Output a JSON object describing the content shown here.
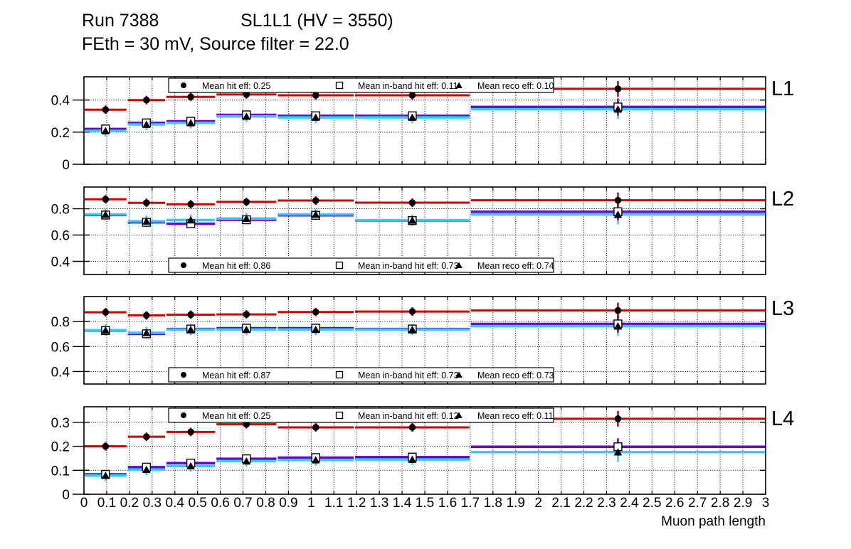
{
  "title": {
    "run": "Run 7388",
    "detector": "SL1L1 (HV = 3550)",
    "conditions": "FEth = 30 mV, Source filter = 22.0"
  },
  "x_axis": {
    "label": "Muon path length",
    "tick_labels": [
      "0",
      "0.1",
      "0.2",
      "0.3",
      "0.4",
      "0.5",
      "0.6",
      "0.7",
      "0.8",
      "0.9",
      "1",
      "1.1",
      "1.2",
      "1.3",
      "1.4",
      "1.5",
      "1.6",
      "1.7",
      "1.8",
      "1.9",
      "2",
      "2.1",
      "2.2",
      "2.3",
      "2.4",
      "2.5",
      "2.6",
      "2.7",
      "2.8",
      "2.9",
      "3"
    ]
  },
  "colors": {
    "hit_line": "#c80000",
    "inband_line": "#6a00cc",
    "reco_line": "#33ccff",
    "marker": "#000000",
    "legend_bg": "#ffffff",
    "frame": "#000000"
  },
  "bins": {
    "xlim": [
      0,
      3
    ],
    "edges": [
      0,
      0.19,
      0.36,
      0.58,
      0.85,
      1.19,
      1.7,
      3.0
    ],
    "centers": [
      0.095,
      0.275,
      0.47,
      0.715,
      1.02,
      1.445,
      2.35
    ]
  },
  "chart_data": [
    {
      "type": "line",
      "panel_label": "L1",
      "ylim": [
        0,
        0.545
      ],
      "yticks": [
        0,
        0.2,
        0.4
      ],
      "ytick_labels": [
        "0",
        "0.2",
        "0.4"
      ],
      "legend_position": "top",
      "series": [
        {
          "name": "hit",
          "legend": "Mean hit  eff: 0.25",
          "mean": 0.25,
          "marker": "circle",
          "values": [
            0.34,
            0.4,
            0.42,
            0.435,
            0.43,
            0.43,
            0.47
          ]
        },
        {
          "name": "inband",
          "legend": "Mean in-band hit eff: 0.11",
          "mean": 0.11,
          "marker": "square",
          "values": [
            0.22,
            0.258,
            0.268,
            0.308,
            0.302,
            0.302,
            0.357
          ]
        },
        {
          "name": "reco",
          "legend": "Mean reco eff: 0.10",
          "mean": 0.1,
          "marker": "triangle",
          "values": [
            0.208,
            0.248,
            0.258,
            0.298,
            0.292,
            0.292,
            0.343
          ]
        }
      ]
    },
    {
      "type": "line",
      "panel_label": "L2",
      "ylim": [
        0.3,
        0.965
      ],
      "yticks": [
        0.4,
        0.6,
        0.8
      ],
      "ytick_labels": [
        "0.4",
        "0.6",
        "0.8"
      ],
      "legend_position": "bottom",
      "series": [
        {
          "name": "hit",
          "legend": "Mean hit  eff: 0.86",
          "mean": 0.86,
          "marker": "circle",
          "values": [
            0.872,
            0.845,
            0.834,
            0.852,
            0.862,
            0.846,
            0.864
          ]
        },
        {
          "name": "inband",
          "legend": "Mean in-band hit eff: 0.73",
          "mean": 0.73,
          "marker": "square",
          "values": [
            0.752,
            0.697,
            0.686,
            0.716,
            0.75,
            0.71,
            0.777
          ]
        },
        {
          "name": "reco",
          "legend": "Mean reco eff: 0.74",
          "mean": 0.74,
          "marker": "triangle",
          "values": [
            0.757,
            0.705,
            0.714,
            0.726,
            0.757,
            0.712,
            0.756
          ]
        }
      ]
    },
    {
      "type": "line",
      "panel_label": "L3",
      "ylim": [
        0.3,
        1.0
      ],
      "yticks": [
        0.4,
        0.6,
        0.8
      ],
      "ytick_labels": [
        "0.4",
        "0.6",
        "0.8"
      ],
      "legend_position": "bottom",
      "series": [
        {
          "name": "hit",
          "legend": "Mean hit  eff: 0.87",
          "mean": 0.87,
          "marker": "circle",
          "values": [
            0.874,
            0.849,
            0.855,
            0.857,
            0.876,
            0.88,
            0.888
          ]
        },
        {
          "name": "inband",
          "legend": "Mean in-band hit eff: 0.73",
          "mean": 0.73,
          "marker": "square",
          "values": [
            0.728,
            0.702,
            0.74,
            0.747,
            0.747,
            0.74,
            0.781
          ]
        },
        {
          "name": "reco",
          "legend": "Mean reco eff: 0.73",
          "mean": 0.73,
          "marker": "triangle",
          "values": [
            0.731,
            0.71,
            0.736,
            0.736,
            0.736,
            0.736,
            0.763
          ]
        }
      ]
    },
    {
      "type": "line",
      "panel_label": "L4",
      "ylim": [
        0,
        0.365
      ],
      "yticks": [
        0,
        0.1,
        0.2,
        0.3
      ],
      "ytick_labels": [
        "0",
        "0.1",
        "0.2",
        "0.3"
      ],
      "legend_position": "top",
      "series": [
        {
          "name": "hit",
          "legend": "Mean hit  eff: 0.25",
          "mean": 0.25,
          "marker": "circle",
          "values": [
            0.2,
            0.24,
            0.26,
            0.292,
            0.279,
            0.279,
            0.315
          ]
        },
        {
          "name": "inband",
          "legend": "Mean in-band hit eff: 0.12",
          "mean": 0.12,
          "marker": "square",
          "values": [
            0.083,
            0.113,
            0.13,
            0.148,
            0.153,
            0.155,
            0.198
          ]
        },
        {
          "name": "reco",
          "legend": "Mean reco eff: 0.11",
          "mean": 0.11,
          "marker": "triangle",
          "values": [
            0.078,
            0.103,
            0.118,
            0.138,
            0.143,
            0.145,
            0.176
          ]
        }
      ]
    }
  ]
}
